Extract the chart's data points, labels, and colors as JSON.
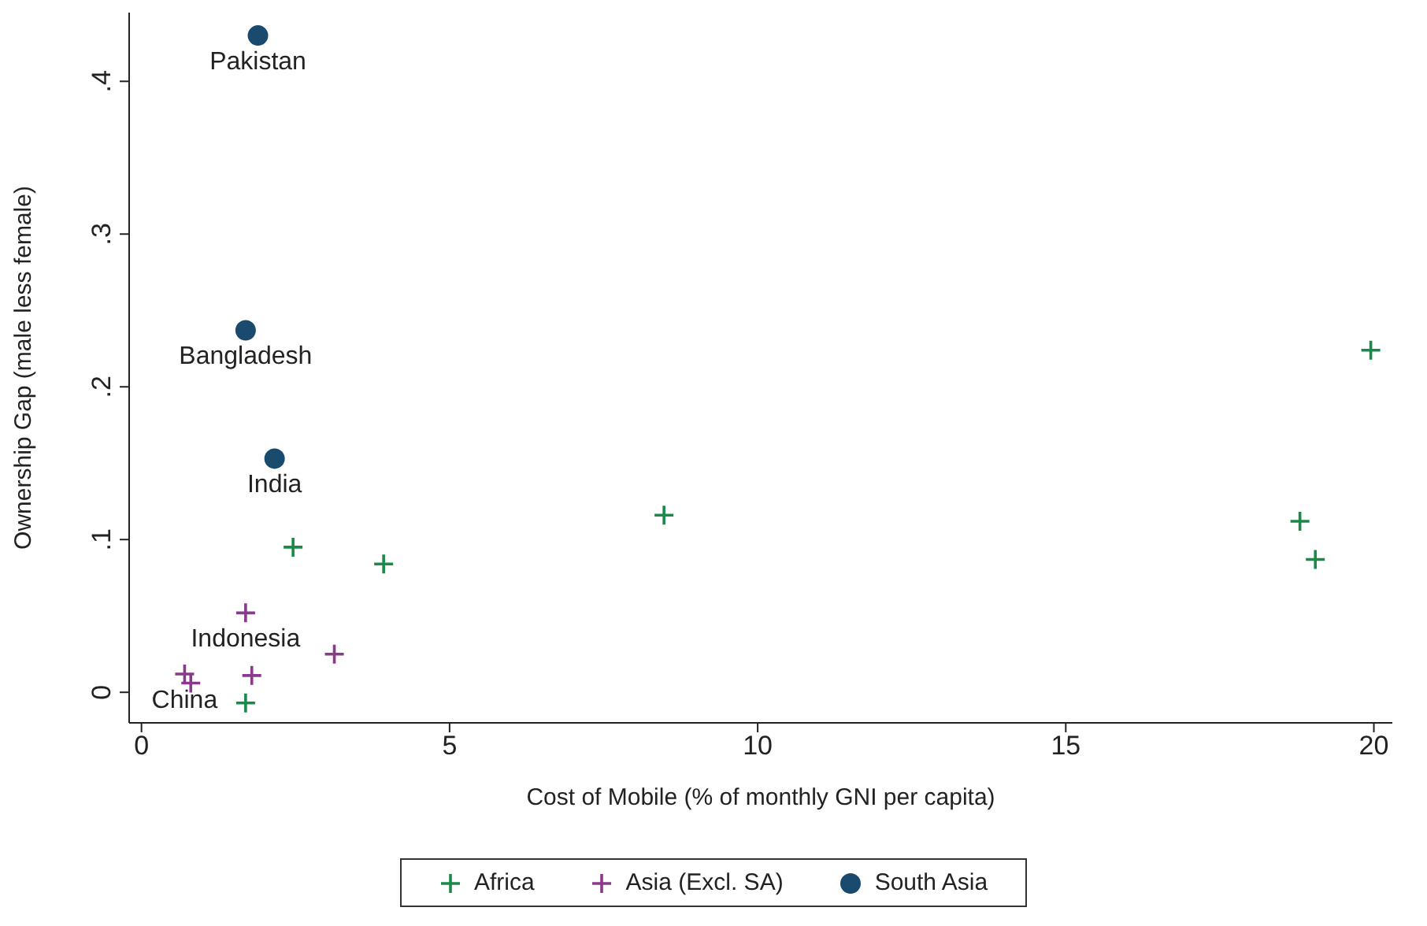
{
  "chart_data": {
    "type": "scatter",
    "xlabel": "Cost of Mobile (% of monthly GNI per capita)",
    "ylabel": "Ownership Gap (male less female)",
    "xlim": [
      -0.2,
      20.3
    ],
    "ylim": [
      -0.02,
      0.445
    ],
    "xticks": [
      0,
      5,
      10,
      15,
      20
    ],
    "yticks": [
      {
        "value": 0,
        "label": "0"
      },
      {
        "value": 0.1,
        "label": ".1"
      },
      {
        "value": 0.2,
        "label": ".2"
      },
      {
        "value": 0.3,
        "label": ".3"
      },
      {
        "value": 0.4,
        "label": ".4"
      }
    ],
    "grid": false,
    "legend": "bottom",
    "series": [
      {
        "name": "Africa",
        "color": "#1a8a4a",
        "marker": "cross",
        "x": [
          19.95,
          2.46,
          3.93,
          8.48,
          18.8,
          19.05,
          1.69
        ],
        "values": [
          0.224,
          0.095,
          0.084,
          0.116,
          0.112,
          0.087,
          -0.007
        ]
      },
      {
        "name": "Asia (Excl. SA)",
        "color": "#8a3a8a",
        "marker": "cross",
        "x": [
          1.69,
          0.7,
          0.8,
          1.79,
          3.13
        ],
        "values": [
          0.052,
          0.012,
          0.006,
          0.011,
          0.025
        ]
      },
      {
        "name": "South Asia",
        "color": "#1a4a6e",
        "marker": "circle",
        "x": [
          1.89,
          1.69,
          2.16
        ],
        "values": [
          0.43,
          0.237,
          0.153
        ]
      }
    ],
    "annotations": [
      {
        "text": "Pakistan",
        "x": 1.89,
        "y": 0.43
      },
      {
        "text": "Bangladesh",
        "x": 1.69,
        "y": 0.237
      },
      {
        "text": "India",
        "x": 2.16,
        "y": 0.153
      },
      {
        "text": "Indonesia",
        "x": 1.69,
        "y": 0.052
      },
      {
        "text": "China",
        "x": 0.7,
        "y": 0.012
      }
    ]
  }
}
